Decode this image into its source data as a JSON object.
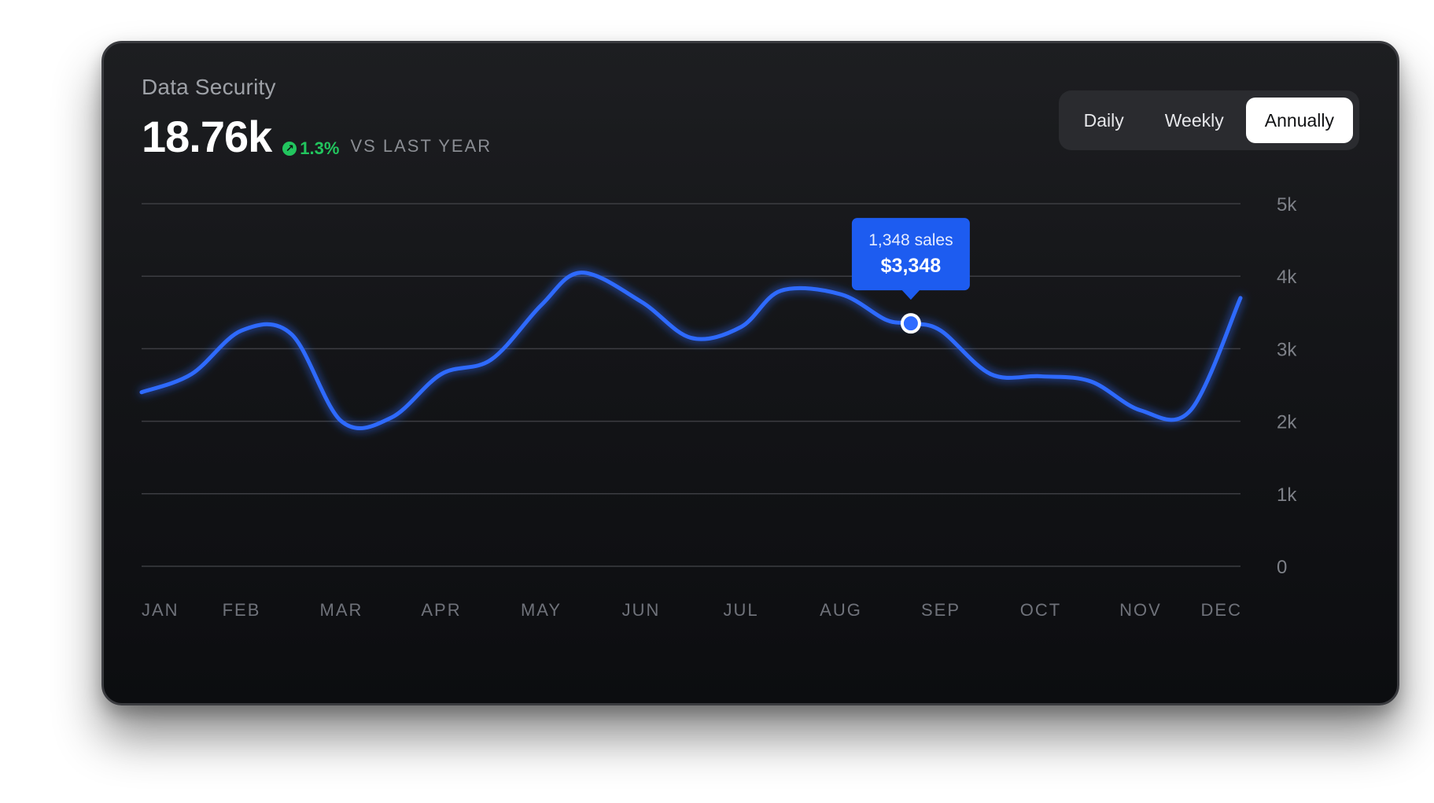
{
  "card": {
    "title": "Data Security",
    "metric": "18.76k",
    "change": "1.3%",
    "change_icon": "arrow-up-right-icon",
    "comparison": "VS LAST YEAR",
    "colors": {
      "accent": "#2f6bff",
      "positive": "#22c55e",
      "tooltip": "#1d5cf0"
    }
  },
  "period_selector": {
    "options": [
      "Daily",
      "Weekly",
      "Annually"
    ],
    "selected": "Annually"
  },
  "chart_data": {
    "type": "line",
    "title": "",
    "xlabel": "",
    "ylabel": "",
    "categories": [
      "JAN",
      "FEB",
      "MAR",
      "APR",
      "MAY",
      "JUN",
      "JUL",
      "AUG",
      "SEP",
      "OCT",
      "NOV",
      "DEC"
    ],
    "series": [
      {
        "name": "Sales",
        "x": [
          0,
          0.5,
          1,
          1.5,
          2,
          2.5,
          3,
          3.5,
          4,
          4.4,
          5,
          5.5,
          6,
          6.4,
          7,
          7.45,
          7.7,
          8,
          8.5,
          9,
          9.5,
          10,
          10.5,
          11
        ],
        "values": [
          2.4,
          2.65,
          3.25,
          3.2,
          2.0,
          2.05,
          2.65,
          2.85,
          3.6,
          4.05,
          3.65,
          3.15,
          3.3,
          3.8,
          3.75,
          3.4,
          3.35,
          3.25,
          2.65,
          2.62,
          2.55,
          2.15,
          2.15,
          3.7
        ]
      }
    ],
    "yticks": [
      "0",
      "1k",
      "2k",
      "3k",
      "4k",
      "5k"
    ],
    "ylim": [
      0,
      5
    ],
    "xlim": [
      0,
      11
    ],
    "grid": true,
    "highlight": {
      "x": 7.7,
      "y": 3.35,
      "sales_label": "1,348 sales",
      "value_label": "$3,348"
    }
  }
}
